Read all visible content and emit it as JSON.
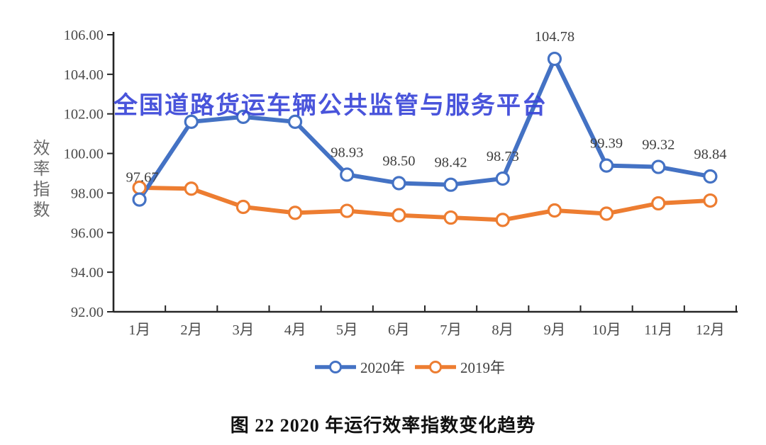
{
  "watermark": {
    "text": "全国道路货运车辆公共监管与服务平台",
    "color": "#3A46D9"
  },
  "caption": "图 22  2020 年运行效率指数变化趋势",
  "axes": {
    "y_label": "效率指数",
    "y_ticks": [
      "106.00",
      "104.00",
      "102.00",
      "100.00",
      "98.00",
      "96.00",
      "94.00",
      "92.00"
    ],
    "x_ticks": [
      "1月",
      "2月",
      "3月",
      "4月",
      "5月",
      "6月",
      "7月",
      "8月",
      "9月",
      "10月",
      "11月",
      "12月"
    ]
  },
  "legend": {
    "items": [
      {
        "label": "2020年",
        "color": "#4472C4"
      },
      {
        "label": "2019年",
        "color": "#ED7D31"
      }
    ]
  },
  "colors": {
    "axis": "#262626",
    "tick_text": "#4a4a4a",
    "data_label_text": "#3f3f3f",
    "series_2020": "#4472C4",
    "series_2019": "#ED7D31",
    "watermark": "#3A46D9"
  },
  "chart_data": {
    "type": "line",
    "title": "图 22 2020 年运行效率指数变化趋势",
    "xlabel": "",
    "ylabel": "效率指数",
    "ylim": [
      92,
      106
    ],
    "ytick_step": 2,
    "grid": false,
    "legend_position": "bottom",
    "categories": [
      "1月",
      "2月",
      "3月",
      "4月",
      "5月",
      "6月",
      "7月",
      "8月",
      "9月",
      "10月",
      "11月",
      "12月"
    ],
    "series": [
      {
        "name": "2020年",
        "color": "#4472C4",
        "values": [
          97.67,
          101.6,
          101.85,
          101.6,
          98.93,
          98.5,
          98.42,
          98.73,
          104.78,
          99.39,
          99.32,
          98.84
        ],
        "data_labels": [
          "97.67",
          "",
          "",
          "",
          "98.93",
          "98.50",
          "98.42",
          "98.73",
          "104.78",
          "99.39",
          "99.32",
          "98.84"
        ],
        "estimated_indices": [
          1,
          2,
          3
        ]
      },
      {
        "name": "2019年",
        "color": "#ED7D31",
        "values": [
          98.27,
          98.22,
          97.3,
          97.0,
          97.1,
          96.88,
          96.76,
          96.64,
          97.12,
          96.96,
          97.48,
          97.62
        ],
        "data_labels": null,
        "estimated_indices": [
          0,
          1,
          2,
          3,
          4,
          5,
          6,
          7,
          8,
          9,
          10,
          11
        ]
      }
    ]
  }
}
